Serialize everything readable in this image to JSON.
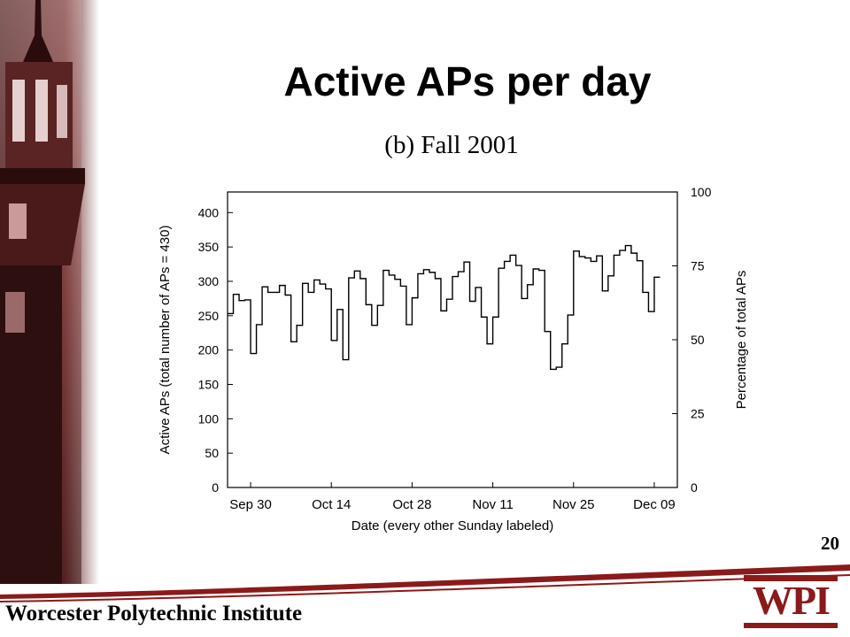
{
  "slide": {
    "title": "Active APs per day",
    "number": "20",
    "footer": "Worcester Polytechnic Institute",
    "logo_text": "WPI"
  },
  "colors": {
    "accent": "#8b1a1a",
    "photo_dark": "#3a1414",
    "photo_mid": "#7a3a3a",
    "photo_light": "#c89a9a"
  },
  "chart_data": {
    "type": "line",
    "step": true,
    "title": "(b) Fall 2001",
    "xlabel": "Date (every other Sunday labeled)",
    "ylabel": "Active APs (total number of APs = 430)",
    "y2label": "Percentage of total APs",
    "ylim": [
      0,
      430
    ],
    "y2lim": [
      0,
      100
    ],
    "yticks": [
      0,
      50,
      100,
      150,
      200,
      250,
      300,
      350,
      400
    ],
    "y2ticks": [
      0,
      25,
      50,
      75,
      100
    ],
    "xticks": [
      {
        "day": 4,
        "label": "Sep 30"
      },
      {
        "day": 18,
        "label": "Oct 14"
      },
      {
        "day": 32,
        "label": "Oct 28"
      },
      {
        "day": 46,
        "label": "Nov 11"
      },
      {
        "day": 60,
        "label": "Nov 25"
      },
      {
        "day": 74,
        "label": "Dec 09"
      }
    ],
    "xlim": [
      0,
      78
    ],
    "grid": false,
    "series": [
      {
        "values": [
          253,
          281,
          272,
          273,
          195,
          237,
          292,
          284,
          284,
          294,
          280,
          212,
          236,
          297,
          284,
          302,
          296,
          289,
          214,
          259,
          186,
          305,
          315,
          304,
          266,
          236,
          265,
          316,
          309,
          303,
          293,
          237,
          276,
          311,
          317,
          313,
          304,
          257,
          274,
          307,
          314,
          328,
          271,
          291,
          248,
          209,
          248,
          319,
          329,
          338,
          323,
          275,
          295,
          318,
          316,
          227,
          172,
          175,
          209,
          251,
          344,
          336,
          334,
          329,
          337,
          286,
          308,
          338,
          345,
          352,
          341,
          330,
          284,
          256,
          306
        ]
      }
    ]
  }
}
